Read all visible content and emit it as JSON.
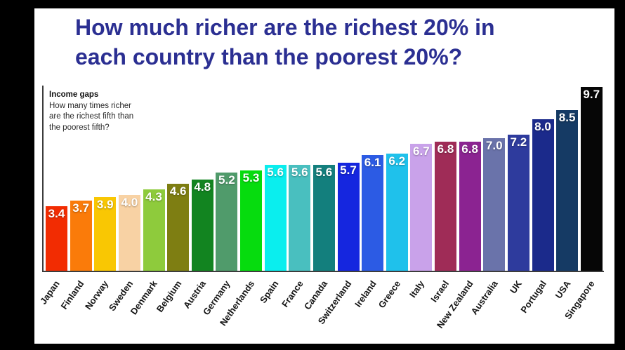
{
  "frame": {
    "background": "#000000",
    "slide_background": "#ffffff"
  },
  "title": {
    "line1": "How much richer are the richest 20% in",
    "line2": "each country than the poorest 20%?",
    "color": "#2b2f92"
  },
  "annotation": {
    "heading": "Income gaps",
    "lines": [
      "How many times richer",
      "are the richest fifth than",
      "the poorest fifth?"
    ]
  },
  "chart_data": {
    "type": "bar",
    "title": "How much richer are the richest 20% in each country than the poorest 20%?",
    "subtitle": "Income gaps — How many times richer are the richest fifth than the poorest fifth?",
    "xlabel": "",
    "ylabel": "",
    "ylim": [
      0,
      10
    ],
    "grid": false,
    "legend": "none",
    "value_label_position": "inside-top",
    "value_label_color": "#ffffff",
    "categories": [
      "Japan",
      "Finland",
      "Norway",
      "Sweden",
      "Denmark",
      "Belgium",
      "Austria",
      "Germany",
      "Netherlands",
      "Spain",
      "France",
      "Canada",
      "Switzerland",
      "Ireland",
      "Greece",
      "Italy",
      "Israel",
      "New Zealand",
      "Australia",
      "UK",
      "Portugal",
      "USA",
      "Singapore"
    ],
    "values": [
      3.4,
      3.7,
      3.9,
      4.0,
      4.3,
      4.6,
      4.8,
      5.2,
      5.3,
      5.6,
      5.6,
      5.6,
      5.7,
      6.1,
      6.2,
      6.7,
      6.8,
      6.8,
      7.0,
      7.2,
      8.0,
      8.5,
      9.7
    ],
    "colors": [
      "#f22c02",
      "#fa7b0a",
      "#f9c703",
      "#f8d2a4",
      "#8ecb3c",
      "#7e7e12",
      "#128420",
      "#509b6b",
      "#06dc0e",
      "#0aeeee",
      "#49bfbf",
      "#137f7d",
      "#1526df",
      "#2c5be4",
      "#1fc1eb",
      "#c9a2ea",
      "#9f2c57",
      "#8b2391",
      "#6a73aa",
      "#2e3b9d",
      "#1b2a8b",
      "#153a64",
      "#060606"
    ]
  }
}
